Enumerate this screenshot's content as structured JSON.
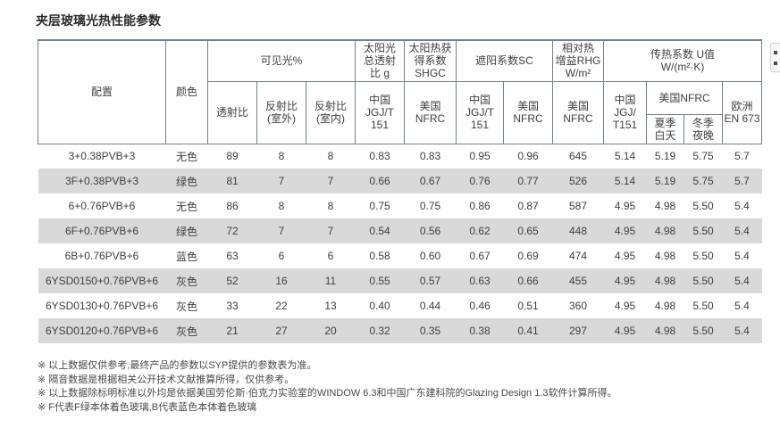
{
  "page": {
    "title": "夹层玻璃光热性能参数"
  },
  "colors": {
    "border": "#72818b",
    "row_shade": "#d9d9d9",
    "text": "#3f3f3f",
    "title_text": "#2b2b2b",
    "widget_bg": "#f7f7f7",
    "widget_border": "#d4d4d4",
    "widget_glyph": "#4a4a4a"
  },
  "table": {
    "header": {
      "config": "配置",
      "color": "颜色",
      "visible_light": {
        "label": "可见光%",
        "children": [
          "透射比",
          "反射比\n(室外)",
          "反射比\n(室内)"
        ]
      },
      "solar_g": {
        "label": "太阳光\n总透射\n比 g",
        "child": "中国\nJGJ/T\n151"
      },
      "shgc": {
        "label": "太阳热获\n得系数\nSHGC",
        "child": "美国\nNFRC"
      },
      "sc": {
        "label": "遮阳系数SC",
        "children": [
          "中国\nJGJ/T\n151",
          "美国\nNFRC"
        ]
      },
      "rhg": {
        "label": "相对热\n增益RHG\nW/m²",
        "child": "美国\nNFRC"
      },
      "u_value": {
        "label": "传热系数 U值\nW/(m²·K)",
        "cn": "中国\nJGJ/\nT151",
        "nfrc": "美国NFRC",
        "summer": "夏季\n白天",
        "winter": "冬季\n夜晚",
        "eu": "欧洲\nEN 673"
      }
    },
    "rows": [
      [
        "3+0.38PVB+3",
        "无色",
        "89",
        "8",
        "8",
        "0.83",
        "0.83",
        "0.95",
        "0.96",
        "645",
        "5.14",
        "5.19",
        "5.75",
        "5.7"
      ],
      [
        "3F+0.38PVB+3",
        "绿色",
        "81",
        "7",
        "7",
        "0.66",
        "0.67",
        "0.76",
        "0.77",
        "526",
        "5.14",
        "5.19",
        "5.75",
        "5.7"
      ],
      [
        "6+0.76PVB+6",
        "无色",
        "86",
        "8",
        "8",
        "0.75",
        "0.75",
        "0.86",
        "0.87",
        "587",
        "4.95",
        "4.98",
        "5.50",
        "5.4"
      ],
      [
        "6F+0.76PVB+6",
        "绿色",
        "72",
        "7",
        "7",
        "0.54",
        "0.56",
        "0.62",
        "0.65",
        "448",
        "4.95",
        "4.98",
        "5.50",
        "5.4"
      ],
      [
        "6B+0.76PVB+6",
        "蓝色",
        "63",
        "6",
        "6",
        "0.58",
        "0.60",
        "0.67",
        "0.69",
        "474",
        "4.95",
        "4.98",
        "5.50",
        "5.4"
      ],
      [
        "6YSD0150+0.76PVB+6",
        "灰色",
        "52",
        "16",
        "11",
        "0.55",
        "0.57",
        "0.63",
        "0.66",
        "455",
        "4.95",
        "4.98",
        "5.50",
        "5.4"
      ],
      [
        "6YSD0130+0.76PVB+6",
        "灰色",
        "33",
        "22",
        "13",
        "0.40",
        "0.44",
        "0.46",
        "0.51",
        "360",
        "4.95",
        "4.98",
        "5.50",
        "5.4"
      ],
      [
        "6YSD0120+0.76PVB+6",
        "灰色",
        "21",
        "27",
        "20",
        "0.32",
        "0.35",
        "0.38",
        "0.41",
        "297",
        "4.95",
        "4.98",
        "5.50",
        "5.4"
      ]
    ]
  },
  "footnotes": [
    "※ 以上数据仅供参考,最终产品的参数以SYP提供的参数表为准。",
    "※ 隔音数据是根据相关公开技术文献推算所得，仅供参考。",
    "※ 以上数据除标明标准以外均是依据美国劳伦斯·伯克力实验室的WINDOW 6.3和中国广东建科院的Glazing Design 1.3软件计算所得。",
    "※ F代表F绿本体着色玻璃,B代表蓝色本体着色玻璃"
  ]
}
